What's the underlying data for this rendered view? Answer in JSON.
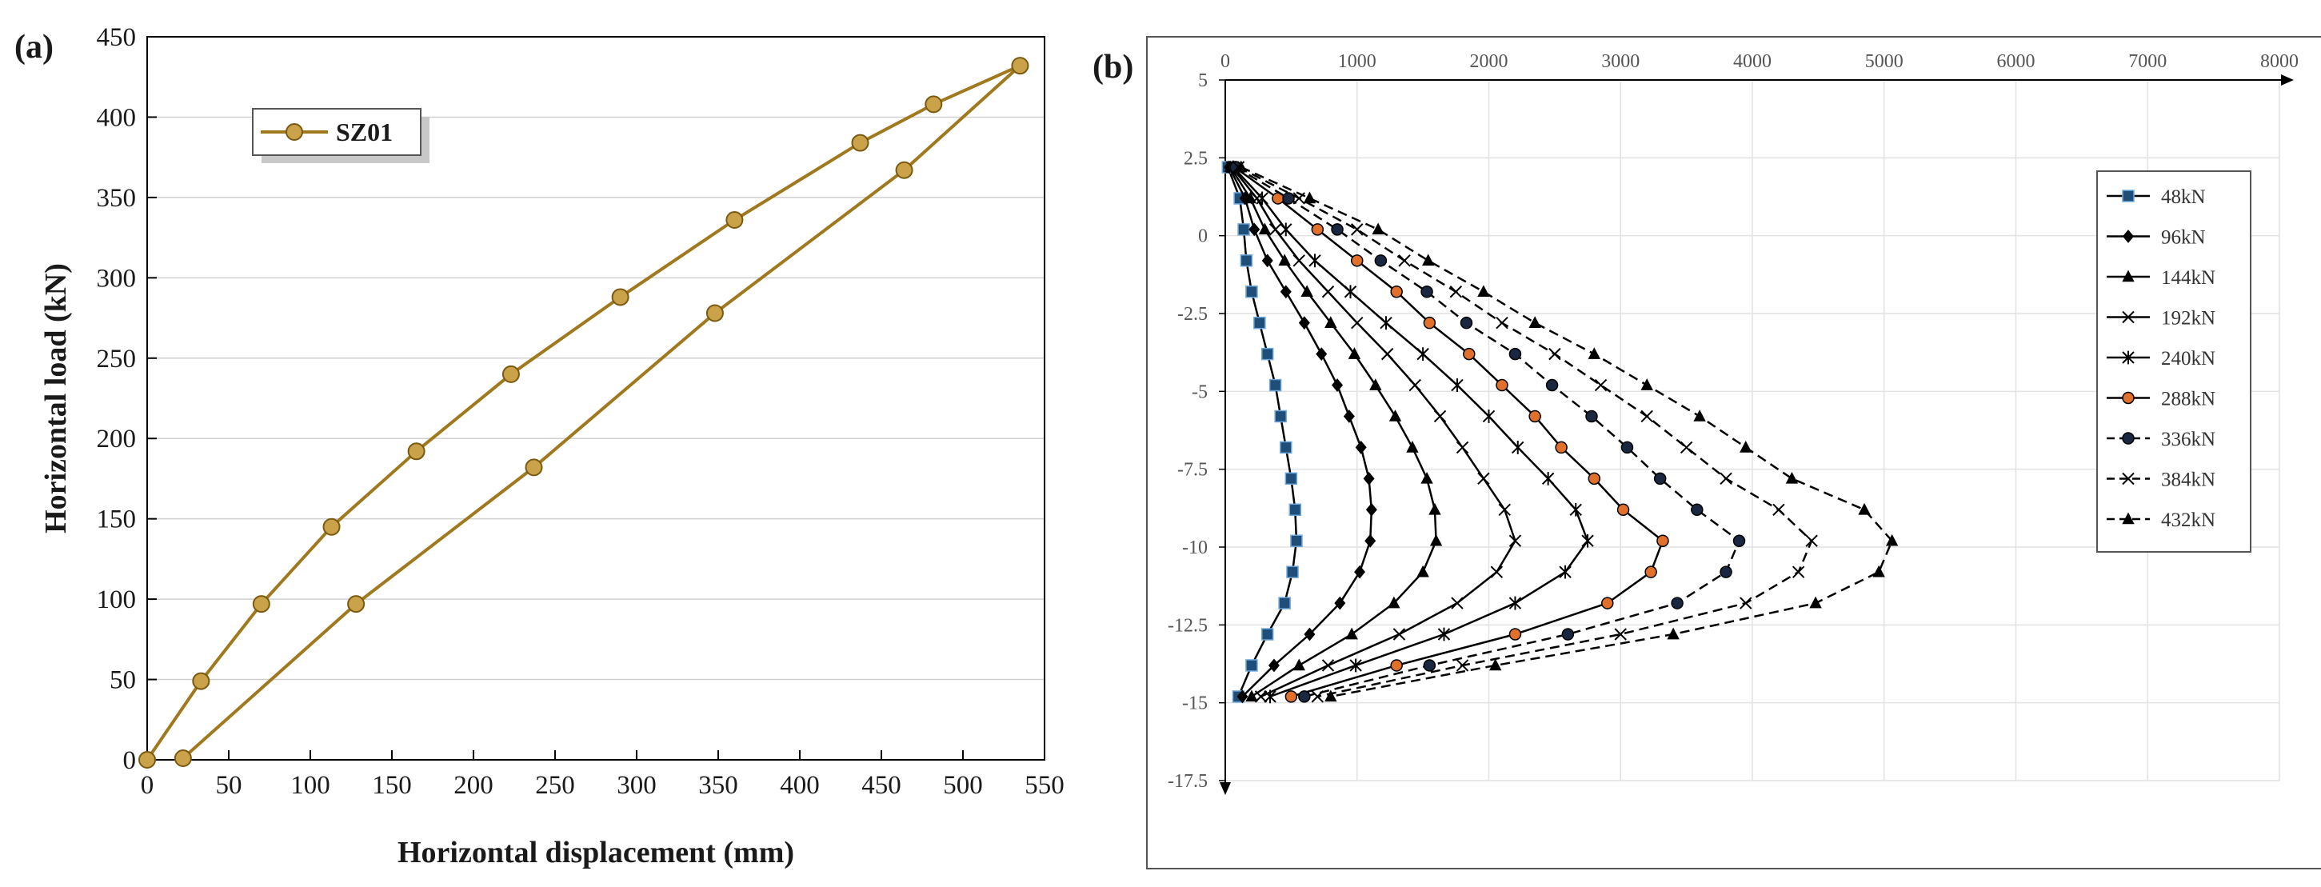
{
  "panel_labels": {
    "a": "(a)",
    "b": "(b)"
  },
  "chart_data": [
    {
      "panel": "a",
      "type": "line",
      "title": "",
      "xlabel": "Horizontal displacement (mm)",
      "ylabel": "Horizontal load (kN)",
      "xlim": [
        0,
        550
      ],
      "ylim": [
        0,
        450
      ],
      "xticks": [
        0,
        50,
        100,
        150,
        200,
        250,
        300,
        350,
        400,
        450,
        500,
        550
      ],
      "yticks": [
        0,
        50,
        100,
        150,
        200,
        250,
        300,
        350,
        400,
        450
      ],
      "grid": "horizontal",
      "legend_position": "top-left",
      "series": [
        {
          "name": "SZ01",
          "color": "#A0781E",
          "marker": "circle",
          "points": [
            [
              0,
              0
            ],
            [
              33,
              49
            ],
            [
              70,
              97
            ],
            [
              113,
              145
            ],
            [
              165,
              192
            ],
            [
              223,
              240
            ],
            [
              290,
              288
            ],
            [
              360,
              336
            ],
            [
              437,
              384
            ],
            [
              482,
              408
            ],
            [
              535,
              432
            ],
            [
              464,
              367
            ],
            [
              348,
              278
            ],
            [
              237,
              182
            ],
            [
              128,
              97
            ],
            [
              22,
              1
            ]
          ]
        }
      ]
    },
    {
      "panel": "b",
      "type": "line",
      "title": "",
      "xlabel": "",
      "ylabel": "",
      "xlim": [
        0,
        8000
      ],
      "ylim": [
        -17.5,
        5
      ],
      "xticks": [
        0,
        1000,
        2000,
        3000,
        4000,
        5000,
        6000,
        7000,
        8000
      ],
      "yticks": [
        5,
        2.5,
        0,
        -2.5,
        -5,
        -7.5,
        -10,
        -12.5,
        -15,
        -17.5
      ],
      "ytick_labels": [
        "5",
        "2.5",
        "0",
        "-2.5",
        "-5",
        "-7.5",
        "-10",
        "-12.5",
        "-15",
        "-17.5"
      ],
      "x_axis_position": "top",
      "grid": "both",
      "legend_position": "right",
      "depths": [
        2.2,
        1.2,
        0.2,
        -0.8,
        -1.8,
        -2.8,
        -3.8,
        -4.8,
        -5.8,
        -6.8,
        -7.8,
        -8.8,
        -9.8,
        -10.8,
        -11.8,
        -12.8,
        -13.8,
        -14.8
      ],
      "series": [
        {
          "name": "48kN",
          "line": "solid",
          "marker": "square",
          "marker_color": "#1F4E79",
          "values": [
            20,
            110,
            140,
            160,
            200,
            260,
            320,
            380,
            420,
            460,
            500,
            530,
            540,
            510,
            450,
            320,
            200,
            100
          ]
        },
        {
          "name": "96kN",
          "line": "solid",
          "marker": "diamond",
          "marker_color": "#000000",
          "values": [
            30,
            150,
            220,
            320,
            460,
            600,
            730,
            850,
            940,
            1030,
            1090,
            1110,
            1100,
            1020,
            870,
            640,
            370,
            130
          ]
        },
        {
          "name": "144kN",
          "line": "solid",
          "marker": "triangle",
          "marker_color": "#000000",
          "values": [
            40,
            190,
            300,
            450,
            620,
            800,
            980,
            1140,
            1290,
            1420,
            1530,
            1590,
            1600,
            1500,
            1280,
            960,
            560,
            200
          ]
        },
        {
          "name": "192kN",
          "line": "solid",
          "marker": "x",
          "marker_color": "#000000",
          "values": [
            50,
            240,
            380,
            560,
            780,
            1000,
            1230,
            1440,
            1630,
            1800,
            1960,
            2120,
            2200,
            2060,
            1760,
            1320,
            780,
            270
          ]
        },
        {
          "name": "240kN",
          "line": "solid",
          "marker": "star",
          "marker_color": "#000000",
          "values": [
            60,
            280,
            460,
            680,
            950,
            1220,
            1500,
            1760,
            2000,
            2220,
            2450,
            2660,
            2750,
            2580,
            2200,
            1660,
            990,
            340
          ]
        },
        {
          "name": "288kN",
          "line": "solid",
          "marker": "circle",
          "marker_color": "#E0702A",
          "values": [
            70,
            400,
            700,
            1000,
            1300,
            1550,
            1850,
            2100,
            2350,
            2550,
            2800,
            3020,
            3320,
            3230,
            2900,
            2200,
            1300,
            500
          ]
        },
        {
          "name": "336kN",
          "line": "dashed",
          "marker": "circle",
          "marker_color": "#1a2740",
          "values": [
            80,
            480,
            850,
            1180,
            1530,
            1830,
            2200,
            2480,
            2780,
            3050,
            3300,
            3580,
            3900,
            3800,
            3430,
            2600,
            1550,
            600
          ]
        },
        {
          "name": "384kN",
          "line": "dashed",
          "marker": "x",
          "marker_color": "#000000",
          "values": [
            100,
            560,
            1000,
            1360,
            1750,
            2100,
            2500,
            2850,
            3200,
            3500,
            3800,
            4200,
            4450,
            4350,
            3950,
            3000,
            1800,
            700
          ]
        },
        {
          "name": "432kN",
          "line": "dashed",
          "marker": "triangle",
          "marker_color": "#000000",
          "values": [
            120,
            640,
            1160,
            1540,
            1960,
            2350,
            2800,
            3200,
            3600,
            3950,
            4300,
            4850,
            5060,
            4960,
            4480,
            3400,
            2050,
            800
          ]
        }
      ]
    }
  ]
}
